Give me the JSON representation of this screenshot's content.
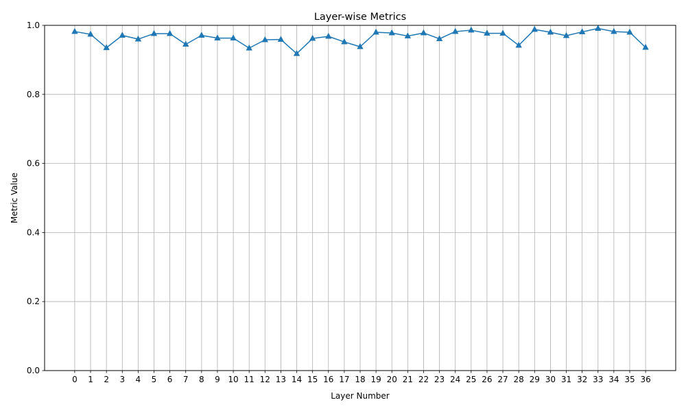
{
  "chart_data": {
    "type": "line",
    "title": "Layer-wise Metrics",
    "xlabel": "Layer Number",
    "ylabel": "Metric Value",
    "xlim": [
      -1.9,
      37.9
    ],
    "ylim": [
      0.0,
      1.0
    ],
    "x": [
      0,
      1,
      2,
      3,
      4,
      5,
      6,
      7,
      8,
      9,
      10,
      11,
      12,
      13,
      14,
      15,
      16,
      17,
      18,
      19,
      20,
      21,
      22,
      23,
      24,
      25,
      26,
      27,
      28,
      29,
      30,
      31,
      32,
      33,
      34,
      35,
      36
    ],
    "x_tick_labels": [
      "0",
      "1",
      "2",
      "3",
      "4",
      "5",
      "6",
      "7",
      "8",
      "9",
      "10",
      "11",
      "12",
      "13",
      "14",
      "15",
      "16",
      "17",
      "18",
      "19",
      "20",
      "21",
      "22",
      "23",
      "24",
      "25",
      "26",
      "27",
      "28",
      "29",
      "30",
      "31",
      "32",
      "33",
      "34",
      "35",
      "36"
    ],
    "y_ticks": [
      0.0,
      0.2,
      0.4,
      0.6,
      0.8,
      1.0
    ],
    "y_tick_labels": [
      "0.0",
      "0.2",
      "0.4",
      "0.6",
      "0.8",
      "1.0"
    ],
    "grid": true,
    "marker": "triangle-up",
    "series": [
      {
        "color": "#1f77b4",
        "values": [
          0.982,
          0.974,
          0.935,
          0.971,
          0.96,
          0.976,
          0.976,
          0.945,
          0.971,
          0.963,
          0.963,
          0.934,
          0.958,
          0.959,
          0.918,
          0.962,
          0.968,
          0.952,
          0.938,
          0.98,
          0.978,
          0.969,
          0.978,
          0.961,
          0.982,
          0.986,
          0.977,
          0.977,
          0.942,
          0.988,
          0.98,
          0.97,
          0.981,
          0.991,
          0.982,
          0.98,
          0.936
        ]
      }
    ],
    "colors": {
      "grid": "#b0b0b0",
      "axis": "#000000",
      "background": "#ffffff"
    }
  }
}
